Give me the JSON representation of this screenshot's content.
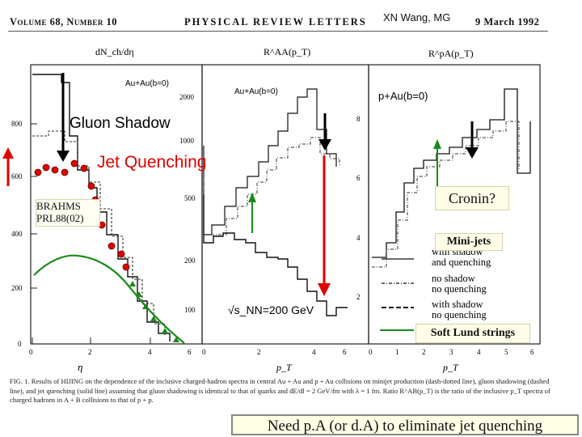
{
  "header": {
    "volume": "Volume 68, Number 10",
    "journal": "PHYSICAL REVIEW LETTERS",
    "date": "9 March 1992",
    "overlay_title": "XN Wang, MG"
  },
  "panels": {
    "p1": {
      "ylabel": "dN_ch/dη",
      "xlabel": "η",
      "yticks": [
        "800",
        "600",
        "400",
        "200",
        "0"
      ],
      "xticks": [
        "0",
        "2",
        "4",
        "6"
      ]
    },
    "p2": {
      "ylabel": "R^AA(p_T)",
      "legend": "Au+Au(b=0)",
      "energy": "√s_NN=200 GeV",
      "xlabel": "p_T",
      "yticks": [
        "2000",
        "1000",
        "500",
        "200",
        "100"
      ],
      "xticks": [
        "0",
        "2",
        "4",
        "6"
      ]
    },
    "p3": {
      "ylabel": "R^pA(p_T)",
      "legend": "p+Au(b=0)",
      "xlabel": "p_T",
      "xticks": [
        "0",
        "1",
        "2",
        "3",
        "4",
        "5",
        "6"
      ],
      "yticks": [
        "8",
        "6",
        "4",
        "2"
      ]
    }
  },
  "p1_legend": "Au+Au(b=0)",
  "annotations": {
    "gluon_shadow": "Gluon Shadow",
    "jet_quenching": "Jet Quenching",
    "brahms": "BRAHMS\nPRL88(02)",
    "cronin": "Cronin?",
    "minijets": "Mini-jets",
    "soft_lund": "Soft Lund strings",
    "bottom_note": "Need p.A (or d.A) to eliminate jet quenching"
  },
  "legend_items": [
    {
      "line1": "with shadow",
      "line2": "and quenching"
    },
    {
      "line1": "no shadow",
      "line2": "no quenching"
    },
    {
      "line1": "with shadow",
      "line2": "no quenching"
    }
  ],
  "caption": "FIG. 1. Results of HIJING on the dependence of the inclusive charged-hadron spectra in central Au + Au and p + Au collisions on minijet production (dash-dotted line), gluon shadowing (dashed line), and jet quenching (solid line) assuming that gluon shadowing is identical to that of quarks and dE/dl = 2 GeV/fm with λ = 1 fm. Ratio R^AB(p_T) is the ratio of the inclusive p_T spectra of charged hadrons in A + B collisions to that of p + p.",
  "colors": {
    "red": "#e00000",
    "green": "#1a8a1a",
    "black": "#000000"
  }
}
